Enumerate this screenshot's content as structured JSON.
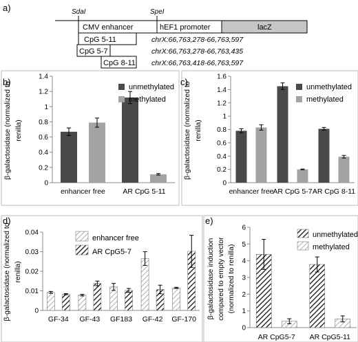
{
  "colors": {
    "dark": "#4a4a4a",
    "light": "#a3a3a3",
    "lacz_fill": "#c6c6c6",
    "axis": "#888888"
  },
  "panel_a": {
    "letter": "a)",
    "site_sdai": "SdaI",
    "site_spei": "SpeI",
    "cmv_label": "CMV enhancer",
    "hef1_label": "hEF1 promoter",
    "lacz_label": "lacZ",
    "fragments": [
      {
        "label": "CpG 5-11",
        "coords": "chrX:66,763,278-66,763,597"
      },
      {
        "label": "CpG 5-7",
        "coords": "chrX:66,763,278-66,763,435"
      },
      {
        "label": "CpG 8-11",
        "coords": "chrX:66,763,418-66,763,597"
      }
    ]
  },
  "chart_data": [
    {
      "id": "b",
      "letter": "b)",
      "type": "bar",
      "ylabel_lines": [
        "β-galactosidase (normalized to",
        "renilla)"
      ],
      "ylim": [
        0,
        1.4
      ],
      "yticks": [
        "0",
        "0.2",
        "0.4",
        "0.6",
        "0.8",
        "1",
        "1.2",
        "1.4"
      ],
      "categories": [
        "enhancer free",
        "AR CpG 5-11"
      ],
      "series": [
        {
          "name": "unmethylated",
          "values": [
            0.67,
            1.12
          ],
          "errors": [
            0.05,
            0.08
          ]
        },
        {
          "name": "methylated",
          "values": [
            0.79,
            0.11
          ],
          "errors": [
            0.06,
            0.01
          ]
        }
      ],
      "legend": "top-right"
    },
    {
      "id": "c",
      "letter": "c)",
      "type": "bar",
      "ylabel_lines": [
        "β-galactosidase (normalized to",
        "renilla)"
      ],
      "ylim": [
        0,
        1.6
      ],
      "yticks": [
        "0",
        "0.2",
        "0.4",
        "0.6",
        "0.8",
        "1",
        "1.2",
        "1.4",
        "1.6"
      ],
      "categories": [
        "enhancer free",
        "AR CpG 5-7",
        "AR CpG 8-11"
      ],
      "series": [
        {
          "name": "unmethylated",
          "values": [
            0.78,
            1.45,
            0.81
          ],
          "errors": [
            0.03,
            0.05,
            0.02
          ]
        },
        {
          "name": "methylated",
          "values": [
            0.83,
            0.2,
            0.39
          ],
          "errors": [
            0.04,
            0.005,
            0.02
          ]
        }
      ],
      "legend": "top-right"
    },
    {
      "id": "d",
      "letter": "d)",
      "type": "bar",
      "ylabel_lines": [
        "β-galactosidase (normalized to",
        "renilla)"
      ],
      "ylim": [
        0,
        0.04
      ],
      "yticks": [
        "0",
        "0.01",
        "0.02",
        "0.03",
        "0.04"
      ],
      "categories": [
        "GF-34",
        "GF-43",
        "GF183",
        "GF-42",
        "GF-170"
      ],
      "series": [
        {
          "name": "enhancer free",
          "values": [
            0.0092,
            0.0078,
            0.012,
            0.0265,
            0.0115
          ],
          "errors": [
            0.0005,
            0.0004,
            0.0018,
            0.0035,
            0.0003
          ]
        },
        {
          "name": "AR CpG5-7",
          "values": [
            0.0083,
            0.0138,
            0.0102,
            0.0107,
            0.0302
          ],
          "errors": [
            0.0003,
            0.0012,
            0.001,
            0.0022,
            0.0082
          ]
        }
      ],
      "legend": "top-left"
    },
    {
      "id": "e",
      "letter": "e)",
      "type": "bar",
      "ylabel_lines": [
        "β-galactosidase induction",
        "compared to empty vector",
        "(normalized to renilla)"
      ],
      "ylim": [
        0,
        6
      ],
      "yticks": [
        "0",
        "1",
        "2",
        "3",
        "4",
        "5",
        "6"
      ],
      "categories": [
        "AR CpG5-7",
        "AR CpG5-11"
      ],
      "series": [
        {
          "name": "unmethylated",
          "values": [
            4.38,
            3.78
          ],
          "errors": [
            0.9,
            0.45
          ]
        },
        {
          "name": "methylated",
          "values": [
            0.38,
            0.52
          ],
          "errors": [
            0.15,
            0.18
          ]
        }
      ],
      "legend": "top-right"
    }
  ]
}
